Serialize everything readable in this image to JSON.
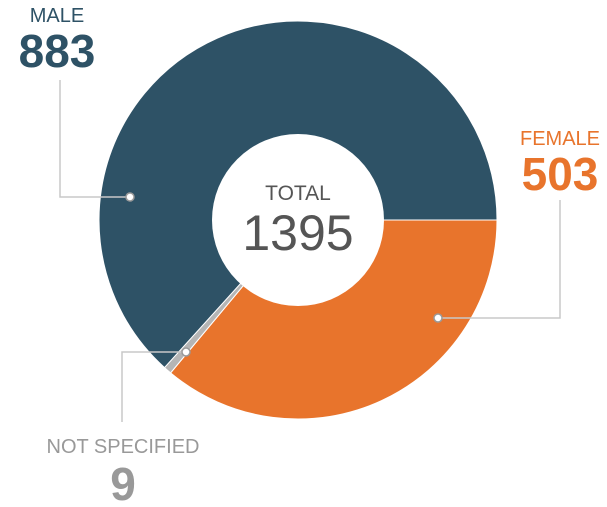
{
  "chart_data": {
    "type": "donut",
    "categories": [
      "MALE",
      "FEMALE",
      "NOT SPECIFIED"
    ],
    "values": [
      883,
      503,
      9
    ],
    "colors": [
      "#2e5266",
      "#e8742c",
      "#b5b5b5"
    ],
    "total_label": "TOTAL",
    "total": 1395
  }
}
